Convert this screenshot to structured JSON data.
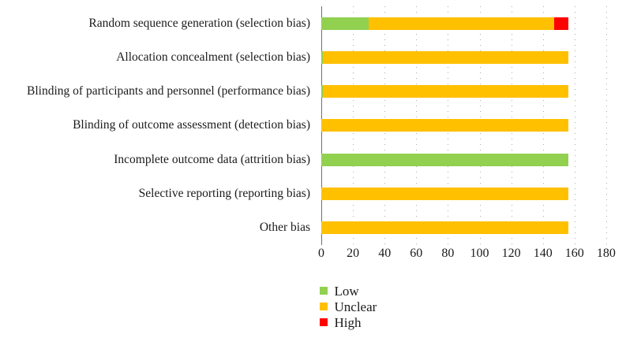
{
  "chart_data": {
    "type": "bar",
    "orientation": "horizontal",
    "stacked": true,
    "title": "",
    "xlabel": "",
    "ylabel": "",
    "categories": [
      "Random sequence generation (selection bias)",
      "Allocation concealment (selection bias)",
      "Blinding of participants and personnel (performance bias)",
      "Blinding of outcome assessment (detection bias)",
      "Incomplete outcome data (attrition bias)",
      "Selective reporting (reporting bias)",
      "Other bias"
    ],
    "series": [
      {
        "name": "Low",
        "color": "#92d050",
        "values": [
          30,
          1,
          1,
          0,
          156,
          0,
          0
        ]
      },
      {
        "name": "Unclear",
        "color": "#ffc000",
        "values": [
          117,
          155,
          155,
          156,
          0,
          156,
          156
        ]
      },
      {
        "name": "High",
        "color": "#ff0000",
        "values": [
          9,
          0,
          0,
          0,
          0,
          0,
          0
        ]
      }
    ],
    "x_ticks": [
      0,
      20,
      40,
      60,
      80,
      100,
      120,
      140,
      160,
      180
    ],
    "xlim": [
      0,
      180
    ],
    "grid": "dotted-vertical",
    "legend_position": "bottom-left",
    "legend": [
      {
        "label": "Low",
        "color": "#92d050"
      },
      {
        "label": "Unclear",
        "color": "#ffc000"
      },
      {
        "label": "High",
        "color": "#ff0000"
      }
    ]
  },
  "colors": {
    "axis": "#707070",
    "grid_dot": "#a9a9a9",
    "text": "#1b1b1b",
    "background": "#ffffff"
  }
}
